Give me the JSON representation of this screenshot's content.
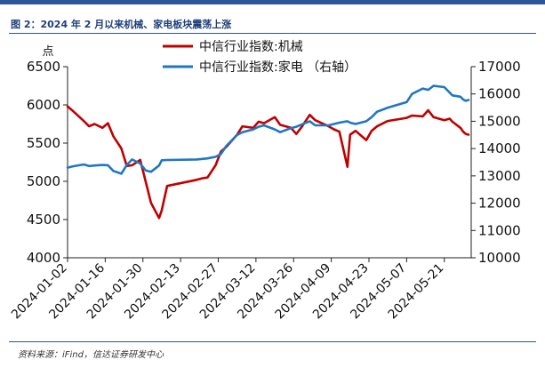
{
  "figure": {
    "title": "图 2：2024 年 2 月以来机械、家电板块震荡上涨",
    "source": "资料来源：iFind，信达证券研发中心"
  },
  "colors": {
    "accent": "#2e5597",
    "series_machinery": "#c00000",
    "series_appliance": "#1f77c4"
  },
  "chart_data": {
    "type": "line",
    "title": "图 2：2024 年 2 月以来机械、家电板块震荡上涨",
    "y_left_unit": "点",
    "legend_position": "top-center",
    "grid": false,
    "x_ticks": [
      "2024-01-02",
      "2024-01-16",
      "2024-01-30",
      "2024-02-13",
      "2024-02-27",
      "2024-03-12",
      "2024-03-26",
      "2024-04-09",
      "2024-04-23",
      "2024-05-07",
      "2024-05-21"
    ],
    "y_left_range": [
      4000,
      6500
    ],
    "y_left_ticks": [
      4000,
      4500,
      5000,
      5500,
      6000,
      6500
    ],
    "y_right_range": [
      10000,
      17000
    ],
    "y_right_ticks": [
      10000,
      11000,
      12000,
      13000,
      14000,
      15000,
      16000,
      17000
    ],
    "series": [
      {
        "name": "中信行业指数:机械",
        "axis": "left",
        "color": "#c00000",
        "x": [
          "2024-01-02",
          "2024-01-04",
          "2024-01-08",
          "2024-01-10",
          "2024-01-12",
          "2024-01-15",
          "2024-01-17",
          "2024-01-19",
          "2024-01-22",
          "2024-01-24",
          "2024-01-26",
          "2024-01-29",
          "2024-01-31",
          "2024-02-02",
          "2024-02-05",
          "2024-02-06",
          "2024-02-08",
          "2024-02-19",
          "2024-02-21",
          "2024-02-23",
          "2024-02-26",
          "2024-02-28",
          "2024-03-01",
          "2024-03-05",
          "2024-03-07",
          "2024-03-11",
          "2024-03-13",
          "2024-03-15",
          "2024-03-19",
          "2024-03-21",
          "2024-03-25",
          "2024-03-27",
          "2024-03-29",
          "2024-04-01",
          "2024-04-03",
          "2024-04-08",
          "2024-04-10",
          "2024-04-12",
          "2024-04-15",
          "2024-04-16",
          "2024-04-18",
          "2024-04-22",
          "2024-04-24",
          "2024-04-26",
          "2024-04-30",
          "2024-05-07",
          "2024-05-09",
          "2024-05-13",
          "2024-05-15",
          "2024-05-17",
          "2024-05-21",
          "2024-05-23",
          "2024-05-24",
          "2024-05-27",
          "2024-05-28",
          "2024-05-29",
          "2024-05-30"
        ],
        "values": [
          5980,
          5920,
          5790,
          5720,
          5750,
          5700,
          5760,
          5590,
          5430,
          5200,
          5210,
          5280,
          5000,
          4720,
          4520,
          4620,
          4940,
          5020,
          5040,
          5050,
          5210,
          5390,
          5450,
          5610,
          5720,
          5700,
          5780,
          5760,
          5840,
          5740,
          5700,
          5620,
          5710,
          5870,
          5800,
          5720,
          5680,
          5650,
          5190,
          5610,
          5660,
          5540,
          5660,
          5720,
          5790,
          5830,
          5860,
          5850,
          5930,
          5840,
          5800,
          5820,
          5780,
          5700,
          5650,
          5620,
          5610
        ]
      },
      {
        "name": "中信行业指数:家电 （右轴）",
        "axis": "right",
        "color": "#1f77c4",
        "x": [
          "2024-01-02",
          "2024-01-04",
          "2024-01-08",
          "2024-01-10",
          "2024-01-12",
          "2024-01-15",
          "2024-01-17",
          "2024-01-19",
          "2024-01-22",
          "2024-01-24",
          "2024-01-26",
          "2024-01-29",
          "2024-01-31",
          "2024-02-02",
          "2024-02-05",
          "2024-02-06",
          "2024-02-08",
          "2024-02-19",
          "2024-02-21",
          "2024-02-23",
          "2024-02-26",
          "2024-02-28",
          "2024-03-01",
          "2024-03-05",
          "2024-03-07",
          "2024-03-11",
          "2024-03-13",
          "2024-03-15",
          "2024-03-19",
          "2024-03-21",
          "2024-03-25",
          "2024-03-27",
          "2024-03-29",
          "2024-04-01",
          "2024-04-03",
          "2024-04-08",
          "2024-04-10",
          "2024-04-12",
          "2024-04-15",
          "2024-04-16",
          "2024-04-18",
          "2024-04-22",
          "2024-04-24",
          "2024-04-26",
          "2024-04-30",
          "2024-05-07",
          "2024-05-09",
          "2024-05-13",
          "2024-05-15",
          "2024-05-17",
          "2024-05-21",
          "2024-05-23",
          "2024-05-24",
          "2024-05-27",
          "2024-05-28",
          "2024-05-29",
          "2024-05-30"
        ],
        "values": [
          13300,
          13350,
          13420,
          13360,
          13380,
          13400,
          13390,
          13180,
          13080,
          13400,
          13600,
          13450,
          13200,
          13150,
          13380,
          13570,
          13580,
          13600,
          13620,
          13640,
          13700,
          13800,
          14100,
          14500,
          14600,
          14700,
          14800,
          14850,
          14700,
          14600,
          14750,
          14800,
          14880,
          15000,
          14850,
          14850,
          14900,
          14950,
          15000,
          14950,
          14900,
          15000,
          15150,
          15350,
          15500,
          15700,
          16000,
          16200,
          16150,
          16300,
          16250,
          16050,
          15950,
          15900,
          15800,
          15750,
          15780
        ]
      }
    ]
  }
}
